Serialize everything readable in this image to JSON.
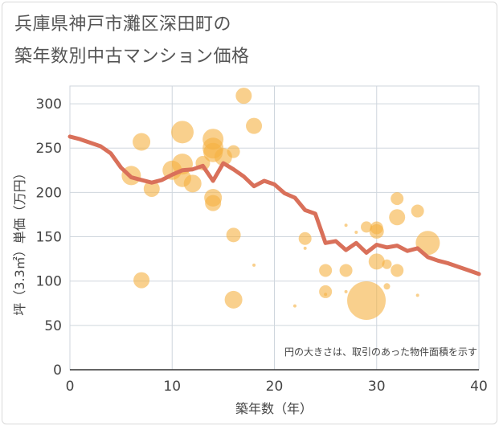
{
  "title_line1": "兵庫県神戸市灘区深田町の",
  "title_line2": "築年数別中古マンション価格",
  "chart_data": {
    "type": "scatter",
    "xlabel": "築年数（年）",
    "ylabel": "坪（3.3㎡）単価（万円）",
    "xlim": [
      0,
      40
    ],
    "ylim": [
      0,
      320
    ],
    "xticks": [
      0,
      10,
      20,
      30,
      40
    ],
    "yticks": [
      0,
      50,
      100,
      150,
      200,
      250,
      300
    ],
    "grid": true,
    "note": "円の大きさは、取引のあった物件面積を示す",
    "colors": {
      "bubble": "#f5b041",
      "line": "#d9705a"
    },
    "bubbles": [
      {
        "x": 6,
        "y": 219,
        "r": 12
      },
      {
        "x": 7,
        "y": 257,
        "r": 11
      },
      {
        "x": 7,
        "y": 101,
        "r": 10
      },
      {
        "x": 8,
        "y": 204,
        "r": 10
      },
      {
        "x": 10,
        "y": 225,
        "r": 12
      },
      {
        "x": 11,
        "y": 268,
        "r": 14
      },
      {
        "x": 11,
        "y": 232,
        "r": 13
      },
      {
        "x": 11,
        "y": 216,
        "r": 11
      },
      {
        "x": 12,
        "y": 210,
        "r": 11
      },
      {
        "x": 13,
        "y": 233,
        "r": 9
      },
      {
        "x": 14,
        "y": 260,
        "r": 13
      },
      {
        "x": 14,
        "y": 250,
        "r": 13
      },
      {
        "x": 14,
        "y": 245,
        "r": 12
      },
      {
        "x": 14,
        "y": 194,
        "r": 11
      },
      {
        "x": 14,
        "y": 188,
        "r": 10
      },
      {
        "x": 15,
        "y": 240,
        "r": 11
      },
      {
        "x": 16,
        "y": 246,
        "r": 8
      },
      {
        "x": 16,
        "y": 152,
        "r": 9
      },
      {
        "x": 16,
        "y": 79,
        "r": 11
      },
      {
        "x": 17,
        "y": 309,
        "r": 10
      },
      {
        "x": 18,
        "y": 275,
        "r": 10
      },
      {
        "x": 18,
        "y": 118,
        "r": 2
      },
      {
        "x": 22,
        "y": 72,
        "r": 2
      },
      {
        "x": 23,
        "y": 148,
        "r": 8
      },
      {
        "x": 23,
        "y": 137,
        "r": 2
      },
      {
        "x": 25,
        "y": 112,
        "r": 8
      },
      {
        "x": 25,
        "y": 88,
        "r": 8
      },
      {
        "x": 25,
        "y": 85,
        "r": 2
      },
      {
        "x": 27,
        "y": 163,
        "r": 2
      },
      {
        "x": 27,
        "y": 112,
        "r": 8
      },
      {
        "x": 27,
        "y": 88,
        "r": 2
      },
      {
        "x": 28,
        "y": 155,
        "r": 2
      },
      {
        "x": 29,
        "y": 78,
        "r": 24
      },
      {
        "x": 29,
        "y": 161,
        "r": 7
      },
      {
        "x": 30,
        "y": 160,
        "r": 8
      },
      {
        "x": 30,
        "y": 156,
        "r": 9
      },
      {
        "x": 30,
        "y": 122,
        "r": 10
      },
      {
        "x": 31,
        "y": 119,
        "r": 6
      },
      {
        "x": 31,
        "y": 94,
        "r": 4
      },
      {
        "x": 32,
        "y": 193,
        "r": 8
      },
      {
        "x": 32,
        "y": 172,
        "r": 10
      },
      {
        "x": 32,
        "y": 112,
        "r": 8
      },
      {
        "x": 34,
        "y": 179,
        "r": 8
      },
      {
        "x": 34,
        "y": 84,
        "r": 2
      },
      {
        "x": 35,
        "y": 143,
        "r": 15
      }
    ],
    "line": {
      "x": [
        0,
        1,
        2,
        3,
        4,
        5,
        6,
        7,
        8,
        9,
        10,
        11,
        12,
        13,
        14,
        15,
        16,
        17,
        18,
        19,
        20,
        21,
        22,
        23,
        24,
        25,
        26,
        27,
        28,
        29,
        30,
        31,
        32,
        33,
        34,
        35,
        36,
        37,
        38,
        39,
        40
      ],
      "y": [
        263,
        260,
        256,
        252,
        244,
        228,
        217,
        214,
        211,
        214,
        220,
        225,
        226,
        230,
        213,
        233,
        226,
        218,
        207,
        213,
        209,
        199,
        194,
        180,
        176,
        143,
        145,
        135,
        143,
        132,
        141,
        138,
        140,
        134,
        137,
        127,
        123,
        120,
        116,
        112,
        108
      ]
    }
  }
}
